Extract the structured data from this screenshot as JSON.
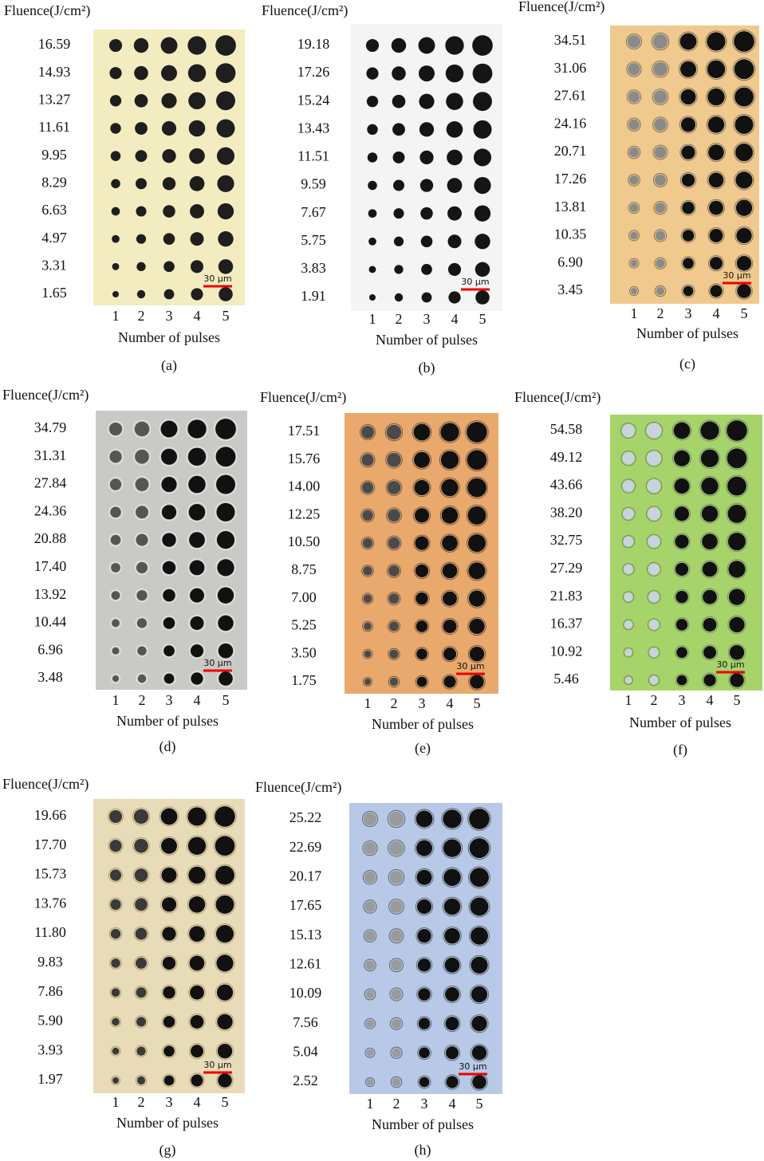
{
  "panels": [
    {
      "header": "Fluence(J/cm²)",
      "fluences": [
        "16.59",
        "14.93",
        "13.27",
        "11.61",
        "9.95",
        "8.29",
        "6.63",
        "4.97",
        "3.31",
        "1.65"
      ],
      "pulses": [
        1,
        2,
        3,
        4,
        5
      ],
      "xlabel": "Number of pulses",
      "scale_bar": "30 μm",
      "label": "(a)"
    },
    {
      "header": "Fluence(J/cm²)",
      "fluences": [
        "19.18",
        "17.26",
        "15.24",
        "13.43",
        "11.51",
        "9.59",
        "7.67",
        "5.75",
        "3.83",
        "1.91"
      ],
      "pulses": [
        1,
        2,
        3,
        4,
        5
      ],
      "xlabel": "Number of pulses",
      "scale_bar": "30 μm",
      "label": "(b)"
    },
    {
      "header": "Fluence(J/cm²)",
      "fluences": [
        "34.51",
        "31.06",
        "27.61",
        "24.16",
        "20.71",
        "17.26",
        "13.81",
        "10.35",
        "6.90",
        "3.45"
      ],
      "pulses": [
        1,
        2,
        3,
        4,
        5
      ],
      "xlabel": "Number of pulses",
      "scale_bar": "30 μm",
      "label": "(c)"
    },
    {
      "header": "Fluence(J/cm²)",
      "fluences": [
        "34.79",
        "31.31",
        "27.84",
        "24.36",
        "20.88",
        "17.40",
        "13.92",
        "10.44",
        "6.96",
        "3.48"
      ],
      "pulses": [
        1,
        2,
        3,
        4,
        5
      ],
      "xlabel": "Number of pulses",
      "scale_bar": "30 μm",
      "label": "(d)"
    },
    {
      "header": "Fluence(J/cm²)",
      "fluences": [
        "17.51",
        "15.76",
        "14.00",
        "12.25",
        "10.50",
        "8.75",
        "7.00",
        "5.25",
        "3.50",
        "1.75"
      ],
      "pulses": [
        1,
        2,
        3,
        4,
        5
      ],
      "xlabel": "Number of pulses",
      "scale_bar": "30 μm",
      "label": "(e)"
    },
    {
      "header": "Fluence(J/cm²)",
      "fluences": [
        "54.58",
        "49.12",
        "43.66",
        "38.20",
        "32.75",
        "27.29",
        "21.83",
        "16.37",
        "10.92",
        "5.46"
      ],
      "pulses": [
        1,
        2,
        3,
        4,
        5
      ],
      "xlabel": "Number of pulses",
      "scale_bar": "30 μm",
      "label": "(f)"
    },
    {
      "header": "Fluence(J/cm²)",
      "fluences": [
        "19.66",
        "17.70",
        "15.73",
        "13.76",
        "11.80",
        "9.83",
        "7.86",
        "5.90",
        "3.93",
        "1.97"
      ],
      "pulses": [
        1,
        2,
        3,
        4,
        5
      ],
      "xlabel": "Number of pulses",
      "scale_bar": "30 μm",
      "label": "(g)"
    },
    {
      "header": "Fluence(J/cm²)",
      "fluences": [
        "25.22",
        "22.69",
        "20.17",
        "17.65",
        "15.13",
        "12.61",
        "10.09",
        "7.56",
        "5.04",
        "2.52"
      ],
      "pulses": [
        1,
        2,
        3,
        4,
        5
      ],
      "xlabel": "Number of pulses",
      "scale_bar": "30 μm",
      "label": "(h)"
    }
  ]
}
